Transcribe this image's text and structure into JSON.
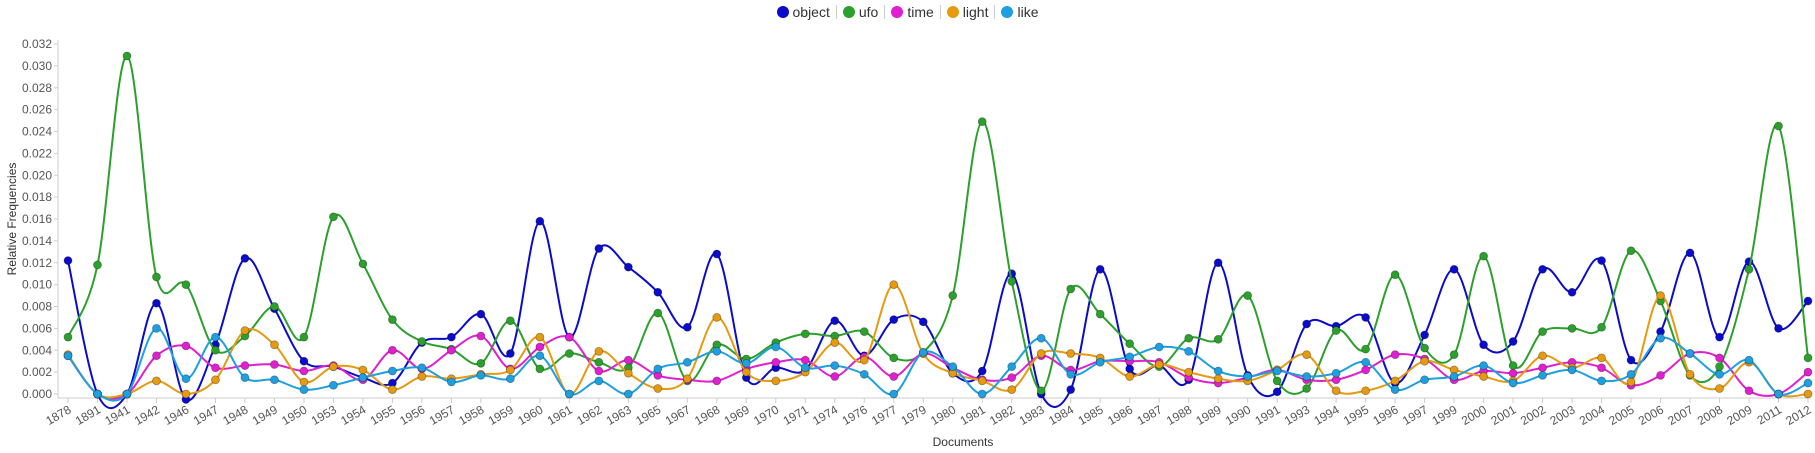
{
  "chart_data": {
    "type": "line",
    "xlabel": "Documents",
    "ylabel": "Relative Frequencies",
    "ylim": [
      0,
      0.032
    ],
    "yticks": [
      "0.000",
      "0.002",
      "0.004",
      "0.006",
      "0.008",
      "0.010",
      "0.012",
      "0.014",
      "0.016",
      "0.018",
      "0.020",
      "0.022",
      "0.024",
      "0.026",
      "0.028",
      "0.030",
      "0.032"
    ],
    "legend_position": "top-center",
    "categories": [
      "1878",
      "1891",
      "1941",
      "1942",
      "1946",
      "1947",
      "1948",
      "1949",
      "1950",
      "1953",
      "1954",
      "1955",
      "1956",
      "1957",
      "1958",
      "1959",
      "1960",
      "1961",
      "1962",
      "1963",
      "1965",
      "1967",
      "1968",
      "1969",
      "1970",
      "1971",
      "1974",
      "1976",
      "1977",
      "1979",
      "1980",
      "1981",
      "1982",
      "1983",
      "1984",
      "1985",
      "1986",
      "1987",
      "1988",
      "1989",
      "1990",
      "1991",
      "1993",
      "1994",
      "1995",
      "1996",
      "1997",
      "1999",
      "2000",
      "2001",
      "2002",
      "2003",
      "2004",
      "2005",
      "2006",
      "2007",
      "2008",
      "2009",
      "2011",
      "2012"
    ],
    "series": [
      {
        "name": "object",
        "color": "#0b0bcc",
        "values": [
          0.0122,
          0.0,
          0.0,
          0.0083,
          -0.0005,
          0.0045,
          0.0124,
          0.0078,
          0.003,
          0.0025,
          0.0015,
          0.001,
          0.0047,
          0.0052,
          0.0073,
          0.0037,
          0.0158,
          0.0052,
          0.0133,
          0.0116,
          0.0093,
          0.0061,
          0.0128,
          0.0015,
          0.0024,
          0.0022,
          0.0067,
          0.0035,
          0.0068,
          0.0066,
          0.0019,
          0.0021,
          0.011,
          0.0,
          0.0004,
          0.0114,
          0.0023,
          0.0026,
          0.0013,
          0.012,
          0.0017,
          0.0002,
          0.0064,
          0.0062,
          0.007,
          0.001,
          0.0054,
          0.0114,
          0.0045,
          0.0048,
          0.0114,
          0.0093,
          0.0122,
          0.0031,
          0.0057,
          0.0129,
          0.0052,
          0.0121,
          0.006,
          0.0085
        ]
      },
      {
        "name": "ufo",
        "color": "#2ca02c",
        "values": [
          0.0052,
          0.0118,
          0.0309,
          0.0107,
          0.01,
          0.004,
          0.0053,
          0.008,
          0.0052,
          0.0162,
          0.0119,
          0.0068,
          0.0048,
          0.0041,
          0.0028,
          0.0067,
          0.0023,
          0.0037,
          0.0029,
          0.0024,
          0.0074,
          0.0012,
          0.0045,
          0.0032,
          0.0047,
          0.0055,
          0.0053,
          0.0057,
          0.0033,
          0.0038,
          0.009,
          0.0249,
          0.0103,
          0.0003,
          0.0096,
          0.0073,
          0.0046,
          0.0025,
          0.0051,
          0.005,
          0.009,
          0.0012,
          0.0005,
          0.0058,
          0.0041,
          0.0109,
          0.0042,
          0.0036,
          0.0126,
          0.0026,
          0.0057,
          0.006,
          0.0061,
          0.0131,
          0.0085,
          0.0017,
          0.0025,
          0.0114,
          0.0245,
          0.0033
        ]
      },
      {
        "name": "time",
        "color": "#e020d0",
        "values": [
          0.0035,
          0.0,
          0.0,
          0.0035,
          0.0044,
          0.0024,
          0.0026,
          0.0027,
          0.0021,
          0.0026,
          0.0013,
          0.004,
          0.0023,
          0.004,
          0.0053,
          0.0023,
          0.0043,
          0.0052,
          0.0021,
          0.0031,
          0.0017,
          0.0013,
          0.0012,
          0.0023,
          0.0029,
          0.0031,
          0.0016,
          0.0034,
          0.0016,
          0.0037,
          0.0024,
          0.0013,
          0.0015,
          0.0035,
          0.0022,
          0.003,
          0.003,
          0.0029,
          0.0015,
          0.001,
          0.0015,
          0.0022,
          0.0013,
          0.0013,
          0.0022,
          0.0036,
          0.0032,
          0.0013,
          0.0021,
          0.0019,
          0.0024,
          0.0029,
          0.0024,
          0.0008,
          0.0017,
          0.0037,
          0.0033,
          0.0003,
          0.0,
          0.002
        ]
      },
      {
        "name": "light",
        "color": "#e59a10",
        "values": [
          0.0036,
          0.0,
          0.0,
          0.0012,
          0.0,
          0.0013,
          0.0058,
          0.0045,
          0.0011,
          0.0025,
          0.0022,
          0.0004,
          0.0016,
          0.0014,
          0.0018,
          0.0022,
          0.0052,
          0.0,
          0.0039,
          0.0019,
          0.0005,
          0.0014,
          0.007,
          0.002,
          0.0012,
          0.002,
          0.0047,
          0.0031,
          0.01,
          0.0037,
          0.0019,
          0.0012,
          0.0004,
          0.0037,
          0.0037,
          0.0033,
          0.0016,
          0.0027,
          0.002,
          0.0014,
          0.0012,
          0.0022,
          0.0036,
          0.0003,
          0.0003,
          0.0012,
          0.003,
          0.0022,
          0.0016,
          0.0012,
          0.0035,
          0.0024,
          0.0033,
          0.0011,
          0.009,
          0.0018,
          0.0005,
          0.0029,
          0.0,
          0.0
        ]
      },
      {
        "name": "like",
        "color": "#1ea0e0",
        "values": [
          0.0035,
          0.0,
          0.0,
          0.006,
          0.0014,
          0.0052,
          0.0015,
          0.0013,
          0.0004,
          0.0008,
          0.0015,
          0.0021,
          0.0024,
          0.0011,
          0.0017,
          0.0014,
          0.0035,
          0.0,
          0.0012,
          0.0,
          0.0023,
          0.0029,
          0.0039,
          0.0028,
          0.0043,
          0.0024,
          0.0026,
          0.0018,
          0.0,
          0.0038,
          0.0025,
          0.0,
          0.0025,
          0.0051,
          0.0018,
          0.0029,
          0.0034,
          0.0043,
          0.0039,
          0.0021,
          0.0016,
          0.0021,
          0.0016,
          0.0019,
          0.0029,
          0.0004,
          0.0013,
          0.0016,
          0.0026,
          0.001,
          0.0017,
          0.0022,
          0.0012,
          0.0018,
          0.0051,
          0.0037,
          0.0018,
          0.0031,
          0.0,
          0.001
        ]
      }
    ]
  }
}
